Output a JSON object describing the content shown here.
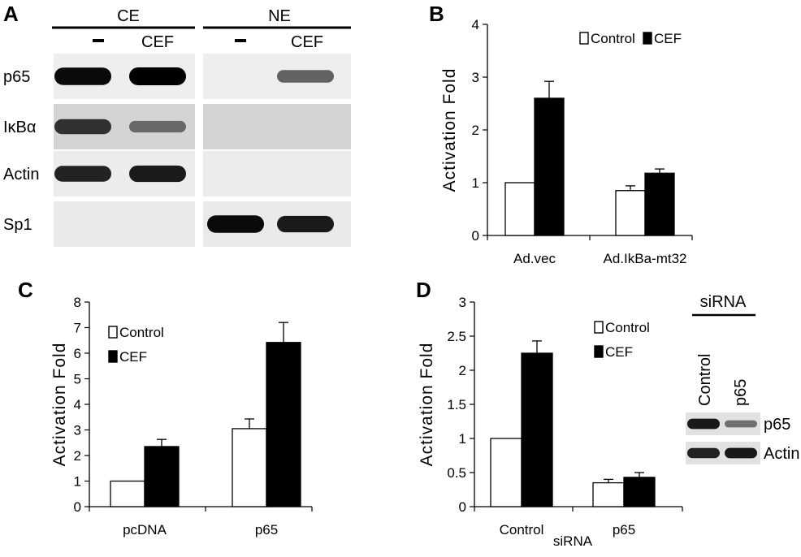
{
  "panel_a": {
    "letter": "A",
    "groups": [
      {
        "label": "CE",
        "lanes": [
          "-",
          "CEF"
        ]
      },
      {
        "label": "NE",
        "lanes": [
          "-",
          "CEF"
        ]
      }
    ],
    "rows": [
      "p65",
      "IκBα",
      "Actin",
      "Sp1"
    ],
    "band_intensity": [
      [
        0.95,
        1.0,
        0.0,
        0.45
      ],
      [
        0.7,
        0.35,
        0.0,
        0.0
      ],
      [
        0.8,
        0.85,
        0.0,
        0.0
      ],
      [
        0.0,
        0.0,
        0.95,
        0.85
      ]
    ]
  },
  "panel_d_blot": {
    "header": "siRNA",
    "lanes": [
      "Control",
      "p65"
    ],
    "rows": [
      "p65",
      "Actin"
    ],
    "band_intensity": [
      [
        0.85,
        0.35
      ],
      [
        0.8,
        0.85
      ]
    ]
  },
  "colors": {
    "control": "#ffffff",
    "cef": "#000000"
  },
  "chart_data": [
    {
      "panel": "B",
      "type": "bar",
      "ylabel": "Activation Fold",
      "xlabel": "",
      "ylim": [
        0,
        4
      ],
      "yticks": [
        0,
        1,
        2,
        3,
        4
      ],
      "categories": [
        "Ad.vec",
        "Ad.IkBa-mt32"
      ],
      "series": [
        {
          "name": "Control",
          "values": [
            1.0,
            0.85
          ],
          "errors": [
            0.0,
            0.09
          ]
        },
        {
          "name": "CEF",
          "values": [
            2.6,
            1.18
          ],
          "errors": [
            0.32,
            0.08
          ]
        }
      ],
      "legend": "top-right"
    },
    {
      "panel": "C",
      "type": "bar",
      "ylabel": "Activation Fold",
      "xlabel": "",
      "ylim": [
        0,
        8
      ],
      "yticks": [
        0,
        1,
        2,
        3,
        4,
        5,
        6,
        7,
        8
      ],
      "categories": [
        "pcDNA",
        "p65"
      ],
      "series": [
        {
          "name": "Control",
          "values": [
            1.0,
            3.05
          ],
          "errors": [
            0.0,
            0.38
          ]
        },
        {
          "name": "CEF",
          "values": [
            2.35,
            6.42
          ],
          "errors": [
            0.28,
            0.78
          ]
        }
      ],
      "legend": "top-left"
    },
    {
      "panel": "D",
      "type": "bar",
      "ylabel": "Activation Fold",
      "xlabel": "siRNA",
      "ylim": [
        0,
        3
      ],
      "yticks": [
        "0",
        "0.5",
        "1",
        "1.5",
        "2",
        "2.5",
        "3"
      ],
      "categories": [
        "Control",
        "p65"
      ],
      "series": [
        {
          "name": "Control",
          "values": [
            1.0,
            0.35
          ],
          "errors": [
            0.0,
            0.05
          ]
        },
        {
          "name": "CEF",
          "values": [
            2.25,
            0.43
          ],
          "errors": [
            0.18,
            0.07
          ]
        }
      ],
      "legend": "top-right"
    }
  ]
}
